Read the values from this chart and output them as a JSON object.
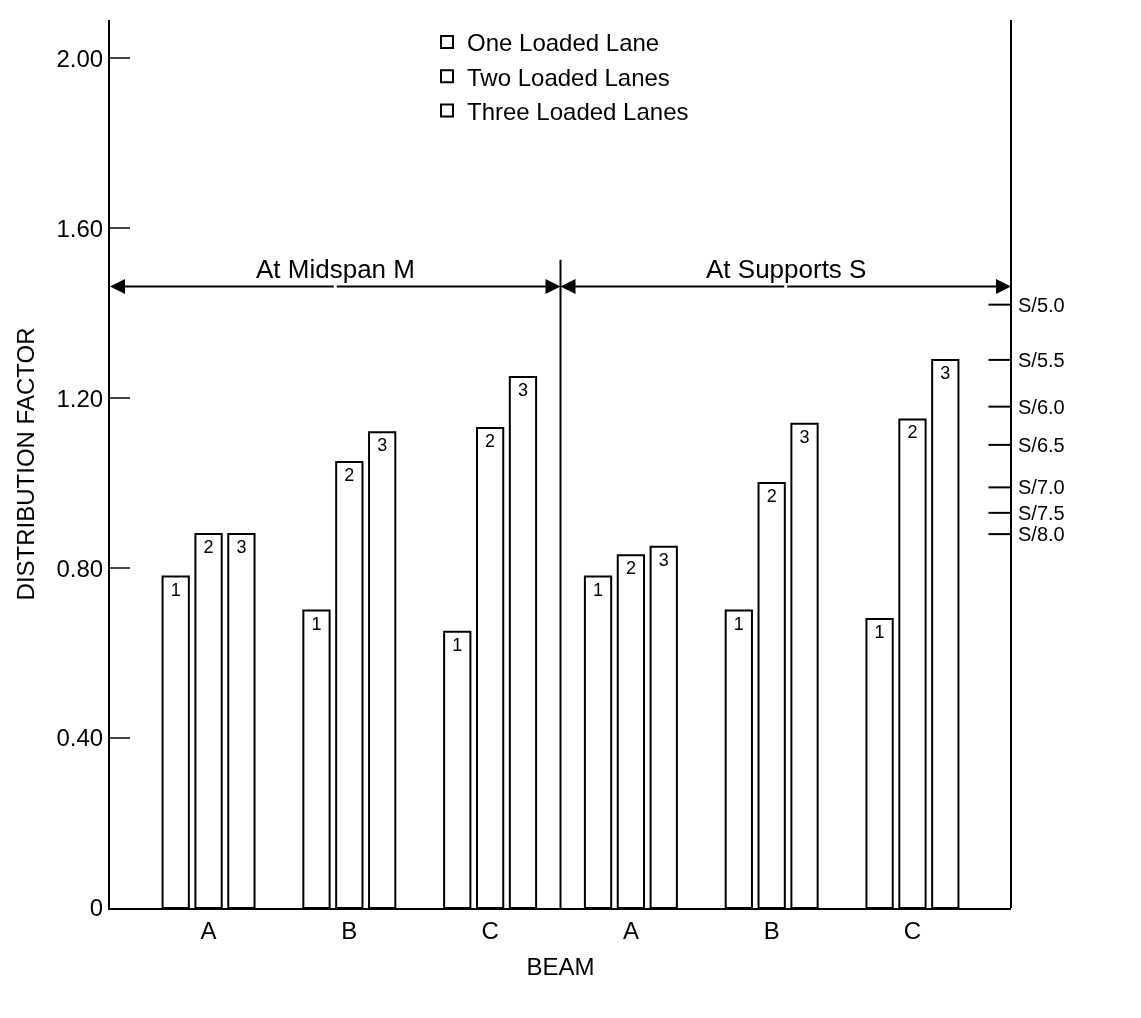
{
  "chart_data": {
    "type": "bar",
    "xlabel": "BEAM",
    "ylabel": "DISTRIBUTION FACTOR",
    "categories": [
      "A",
      "B",
      "C",
      "A",
      "B",
      "C"
    ],
    "series": [
      {
        "name": "One Loaded Lane",
        "color": "#ffffff",
        "values": [
          0.78,
          0.7,
          0.65,
          0.78,
          0.7,
          0.68
        ]
      },
      {
        "name": "Two Loaded Lanes",
        "color": "#ffffff",
        "values": [
          0.88,
          1.05,
          1.13,
          0.83,
          1.0,
          1.15
        ]
      },
      {
        "name": "Three Loaded Lanes",
        "color": "#ffffff",
        "values": [
          0.88,
          1.12,
          1.25,
          0.85,
          1.14,
          1.29
        ]
      }
    ],
    "ylim": [
      0,
      2.09
    ],
    "yticks": [
      0,
      {
        "value": 0.4,
        "label": "0.40"
      },
      {
        "value": 0.8,
        "label": "0.80"
      },
      {
        "value": 1.2,
        "label": "1.20"
      },
      {
        "value": 1.6,
        "label": "1.60"
      },
      {
        "value": 2.0,
        "label": "2.00"
      }
    ],
    "ref_lines": [
      {
        "axis": "y",
        "value": 1.42,
        "label": "S/5.0"
      },
      {
        "axis": "y",
        "value": 1.29,
        "label": "S/5.5"
      },
      {
        "axis": "y",
        "value": 1.18,
        "label": "S/6.0"
      },
      {
        "axis": "y",
        "value": 1.09,
        "label": "S/6.5"
      },
      {
        "axis": "y",
        "value": 0.99,
        "label": "S/7.0"
      },
      {
        "axis": "y",
        "value": 0.93,
        "label": "S/7.5"
      },
      {
        "axis": "y",
        "value": 0.88,
        "label": "S/8.0"
      }
    ],
    "annotations": [
      "At Midspan M",
      "At Supports S",
      "1",
      "2",
      "3"
    ],
    "legend": "top"
  }
}
